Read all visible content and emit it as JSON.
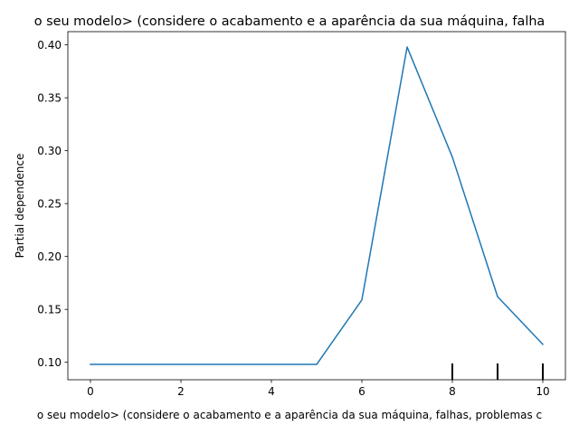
{
  "chart_data": {
    "type": "line",
    "title": "o seu modelo> (considere o acabamento e a aparência da sua máquina, falha",
    "xlabel": "o seu modelo> (considere o acabamento e a aparência da sua máquina, falhas, problemas c",
    "ylabel": "Partial dependence",
    "xlim": [
      -0.5,
      10.5
    ],
    "ylim": [
      0.0835,
      0.4125
    ],
    "x_ticks": [
      0,
      2,
      4,
      6,
      8,
      10
    ],
    "x_tick_labels": [
      "0",
      "2",
      "4",
      "6",
      "8",
      "10"
    ],
    "y_ticks": [
      0.1,
      0.15,
      0.2,
      0.25,
      0.3,
      0.35,
      0.4
    ],
    "y_tick_labels": [
      "0.10",
      "0.15",
      "0.20",
      "0.25",
      "0.30",
      "0.35",
      "0.40"
    ],
    "grid": false,
    "series": [
      {
        "color": "#1f77b4",
        "x": [
          0,
          1,
          2,
          3,
          4,
          5,
          6,
          7,
          8,
          9,
          10
        ],
        "y": [
          0.098,
          0.098,
          0.098,
          0.098,
          0.098,
          0.098,
          0.159,
          0.398,
          0.294,
          0.162,
          0.117
        ]
      }
    ],
    "rug": {
      "color": "#000000",
      "x": [
        8,
        9,
        10
      ]
    }
  }
}
